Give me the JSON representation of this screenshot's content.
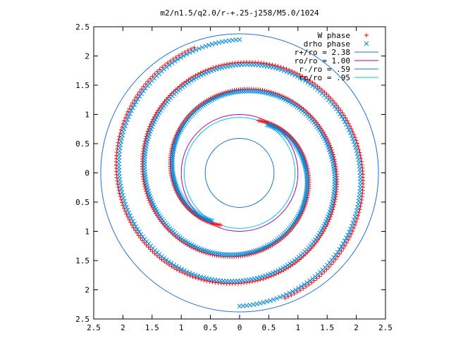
{
  "chart_data": {
    "type": "scatter",
    "title": "m2/n1.5/q2.0/r-+.25-j258/M5.0/1024",
    "xlabel": "",
    "ylabel": "",
    "xlim": [
      -2.5,
      2.5
    ],
    "ylim": [
      -2.5,
      2.5
    ],
    "xticks": [
      -2.5,
      -2,
      -1.5,
      -1,
      -0.5,
      0,
      0.5,
      1,
      1.5,
      2,
      2.5
    ],
    "yticks": [
      -2.5,
      -2,
      -1.5,
      -1,
      -0.5,
      0,
      0.5,
      1,
      1.5,
      2,
      2.5
    ],
    "xtick_labels": [
      "2.5",
      "2",
      "1.5",
      "1",
      "0.5",
      "0",
      "0.5",
      "1",
      "1.5",
      "2",
      "2.5"
    ],
    "ytick_labels": [
      "2.5",
      "2",
      "1.5",
      "1",
      "0.5",
      "0",
      "0.5",
      "1",
      "1.5",
      "2",
      "2.5"
    ],
    "grid": false,
    "legend_position": "top-right",
    "series": [
      {
        "name": "W phase",
        "marker": "plus",
        "color": "#ff0000",
        "spiral": {
          "r_inner": 0.95,
          "r_outer": 2.28,
          "theta_start_deg": 70,
          "theta_span_deg": 500,
          "arms": 2,
          "n_points": 340
        }
      },
      {
        "name": "drho phase",
        "marker": "cross",
        "color": "#0088dd",
        "spiral": {
          "r_inner": 0.95,
          "r_outer": 2.28,
          "theta_start_deg": 60,
          "theta_span_deg": 510,
          "arms": 2,
          "n_points": 340
        }
      },
      {
        "name": "r+/ro = 2.38",
        "type": "circle",
        "radius": 2.38,
        "color": "#1f6fd6"
      },
      {
        "name": "ro/ro = 1.00",
        "type": "circle",
        "radius": 1.0,
        "color": "#b000b0"
      },
      {
        "name": "r-/ro = .59",
        "type": "circle",
        "radius": 0.59,
        "color": "#1a78c8"
      },
      {
        "name": "rc/ro = .95",
        "type": "circle",
        "radius": 0.95,
        "color": "#00c8d8"
      }
    ]
  }
}
